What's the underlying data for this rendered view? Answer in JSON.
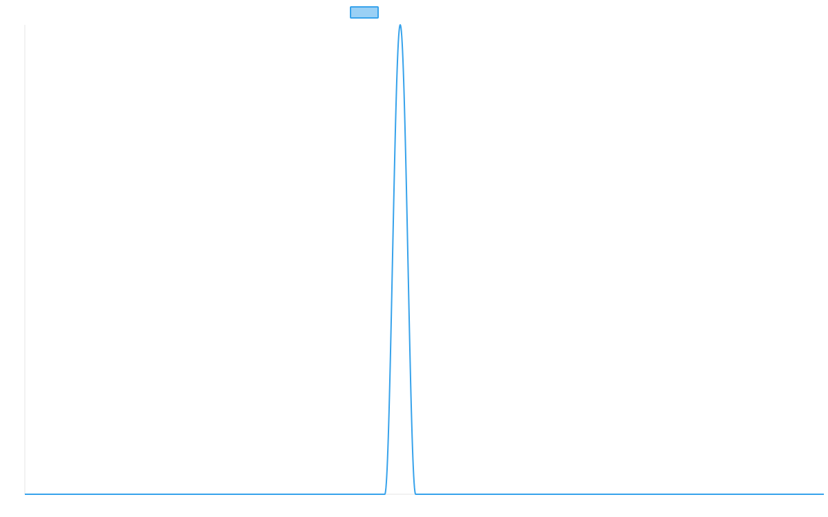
{
  "chart_data": {
    "type": "line",
    "title": "",
    "xlabel": "",
    "ylabel": "",
    "x_range": [
      0,
      1
    ],
    "y_range": [
      0,
      1
    ],
    "grid": false,
    "legend": "top-center",
    "series": [
      {
        "label": "",
        "color": "#36a2eb",
        "fill_color": "#9ad0f5",
        "peak_x": 0.4698,
        "half_width": 0.0193,
        "peak_y": 1.0,
        "baseline_y": 0.0
      }
    ]
  }
}
